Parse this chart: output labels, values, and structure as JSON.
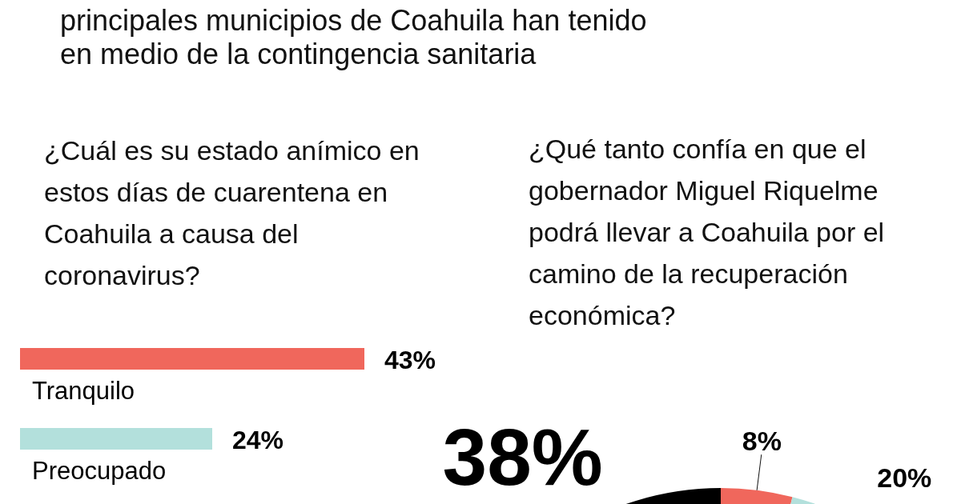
{
  "chart_data": [
    {
      "type": "bar",
      "orientation": "horizontal",
      "title": "principales municipios de Coahuila han tenido en medio de la contingencia sanitaria",
      "subtitle": "¿Cuál es su estado anímico en estos días de cuarentena en Coahuila a causa del coronavirus?",
      "categories": [
        "Tranquilo",
        "Preocupado"
      ],
      "values": [
        43,
        24
      ],
      "value_labels": [
        "43%",
        "24%"
      ],
      "colors": [
        "#f0675c",
        "#b3e0dc"
      ]
    },
    {
      "type": "donut",
      "title": "¿Qué tanto confía en que el gobernador Miguel Riquelme podrá llevar a Coahuila por el camino de la recuperación económica?",
      "categories": [
        null,
        null,
        null
      ],
      "values": [
        38,
        8,
        20
      ],
      "value_labels": [
        "38%",
        "8%",
        "20%"
      ],
      "colors": [
        "#000000",
        "#f0675c",
        "#b3e0dc"
      ]
    }
  ]
}
